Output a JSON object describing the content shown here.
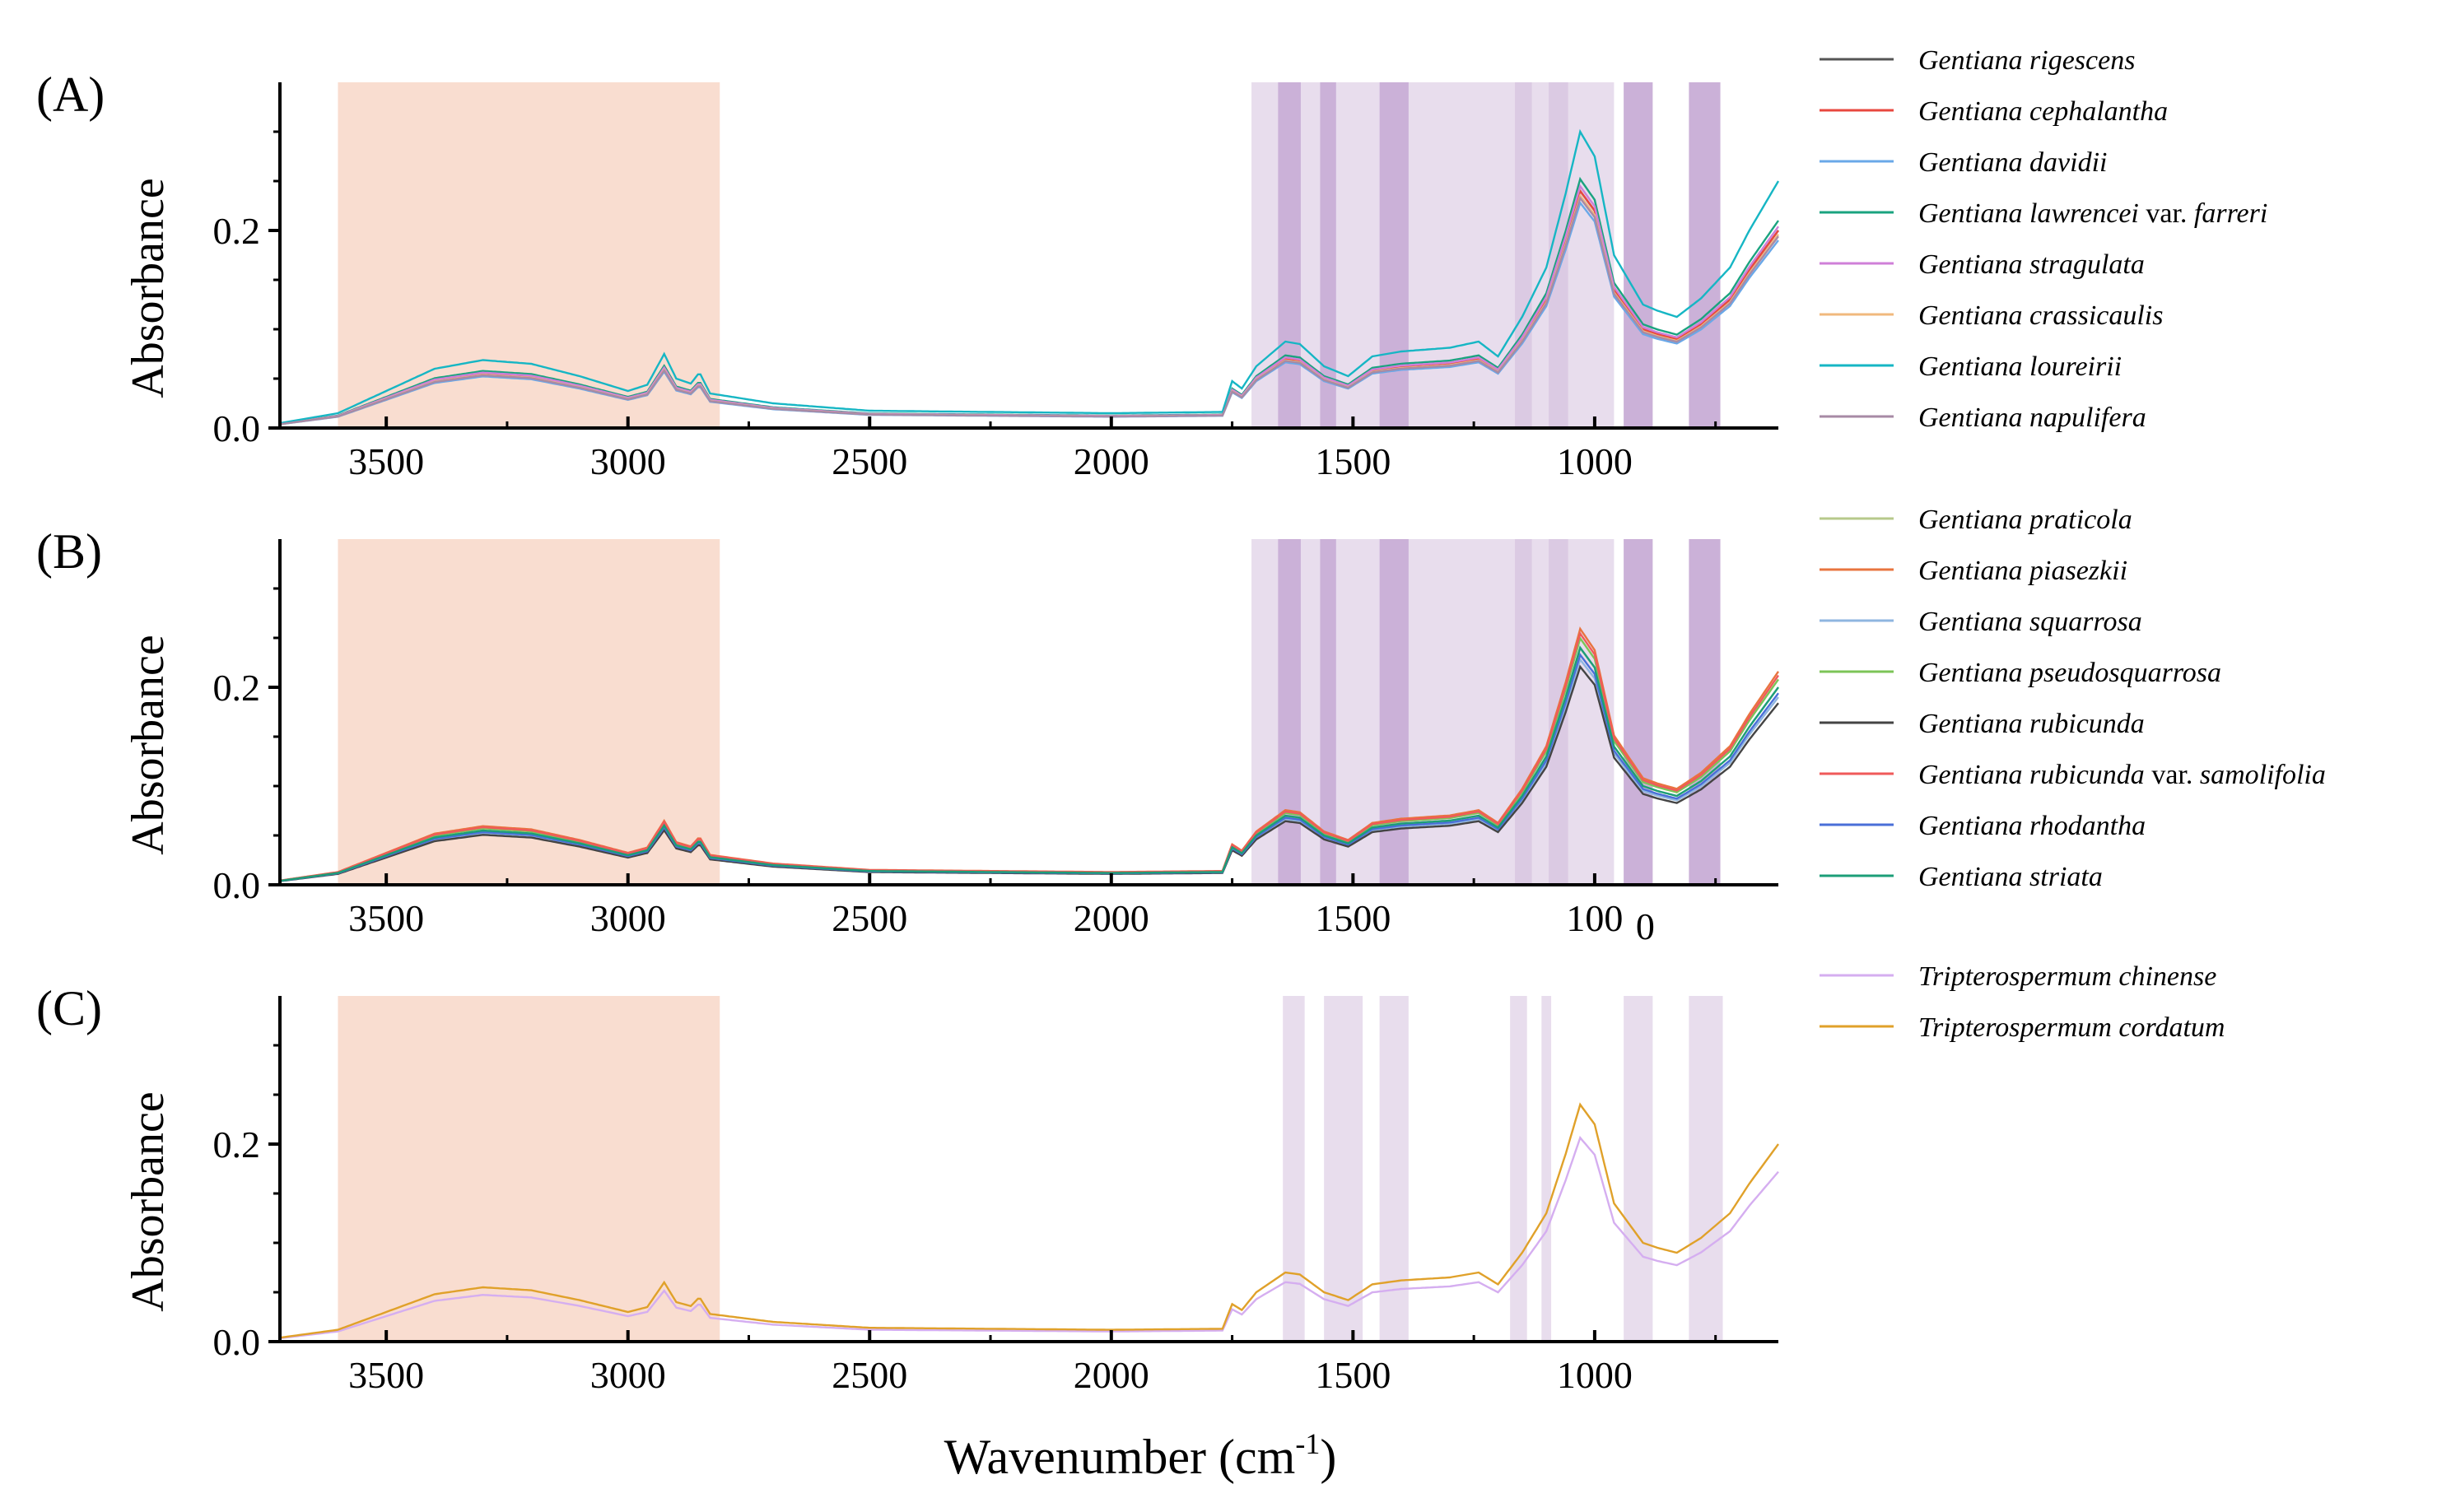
{
  "chart_data": {
    "type": "line",
    "title": "",
    "xlabel": "Wavenumber (cm",
    "xlabel_sup": "-1",
    "xlabel_close": ")",
    "ylabel": "Absorbance",
    "xlim": [
      3720,
      620
    ],
    "ylim": [
      0,
      0.35
    ],
    "x_ticks": [
      3500,
      3000,
      2500,
      2000,
      1500,
      1000
    ],
    "y_ticks": [
      0.0,
      0.2
    ],
    "y_tick_labels": [
      "0.0",
      "0.2"
    ],
    "x_tick_labels": [
      "3500",
      "3000",
      "2500",
      "2000",
      "1500",
      "1000"
    ],
    "x_tick_labels_panel_b": [
      "3500",
      "3000",
      "2500",
      "2000",
      "1500",
      "100",
      "0"
    ],
    "highlight_band_color": "#f5c6b1",
    "highlight_bands": [
      [
        3600,
        2810
      ]
    ],
    "region_color": "#cdb3d8",
    "region_color_dark": "#a97cbf",
    "panels": [
      {
        "letter": "(A)",
        "light_regions": [
          [
            1710,
            960
          ],
          [
            1165,
            1130
          ],
          [
            1095,
            1055
          ],
          [
            940,
            880
          ],
          [
            805,
            740
          ]
        ],
        "dark_regions": [
          [
            1655,
            1608
          ],
          [
            1568,
            1535
          ],
          [
            1445,
            1385
          ],
          [
            940,
            880
          ],
          [
            805,
            740
          ]
        ],
        "series": [
          {
            "name": "Gentiana rigescens",
            "color": "#555555",
            "scale": 1.0
          },
          {
            "name": "Gentiana cephalantha",
            "color": "#e8483f",
            "scale": 1.0
          },
          {
            "name": "Gentiana davidii",
            "color": "#6aa8e8",
            "scale": 0.95
          },
          {
            "name": "Gentiana lawrencei var. farreri",
            "color": "#1aa37f",
            "scale": 1.05
          },
          {
            "name": "Gentiana stragulata",
            "color": "#cf7fd8",
            "scale": 1.02
          },
          {
            "name": "Gentiana crassicaulis",
            "color": "#f1b97d",
            "scale": 0.98
          },
          {
            "name": "Gentiana loureirii",
            "color": "#16b6c4",
            "scale": 1.25
          },
          {
            "name": "Gentiana napulifera",
            "color": "#a78aa5",
            "scale": 0.97
          }
        ]
      },
      {
        "letter": "(B)",
        "light_regions": [
          [
            1710,
            960
          ],
          [
            1165,
            1130
          ],
          [
            1095,
            1055
          ],
          [
            940,
            880
          ],
          [
            805,
            740
          ]
        ],
        "dark_regions": [
          [
            1655,
            1608
          ],
          [
            1568,
            1535
          ],
          [
            1445,
            1385
          ],
          [
            940,
            880
          ],
          [
            805,
            740
          ]
        ],
        "series": [
          {
            "name": "Gentiana praticola",
            "color": "#b7c98b",
            "scale": 1.0
          },
          {
            "name": "Gentiana piasezkii",
            "color": "#e8743f",
            "scale": 1.08
          },
          {
            "name": "Gentiana squarrosa",
            "color": "#8fb6e0",
            "scale": 0.95
          },
          {
            "name": "Gentiana pseudosquarrosa",
            "color": "#7cc457",
            "scale": 1.04
          },
          {
            "name": "Gentiana rubicunda",
            "color": "#444444",
            "scale": 0.92
          },
          {
            "name": "Gentiana rubicunda var. samolifolia",
            "color": "#f05a5a",
            "scale": 1.06
          },
          {
            "name": "Gentiana rhodantha",
            "color": "#4a6fd8",
            "scale": 0.97
          },
          {
            "name": "Gentiana striata",
            "color": "#1c9e78",
            "scale": 1.0
          }
        ]
      },
      {
        "letter": "(C)",
        "light_regions": [
          [
            1645,
            1600
          ],
          [
            1560,
            1480
          ],
          [
            1445,
            1385
          ],
          [
            1175,
            1140
          ],
          [
            1110,
            1090
          ],
          [
            940,
            880
          ],
          [
            805,
            735
          ]
        ],
        "dark_regions": [],
        "series": [
          {
            "name": "Tripterospermum chinense",
            "color": "#d5aef0",
            "scale": 0.86
          },
          {
            "name": "Tripterospermum cordatum",
            "color": "#e0a12a",
            "scale": 1.0
          }
        ]
      }
    ],
    "legend_groups": [
      [
        {
          "name": "Gentiana rigescens"
        },
        {
          "name": "Gentiana cephalantha"
        },
        {
          "name": "Gentiana davidii"
        },
        {
          "name": "Gentiana lawrencei",
          "var": "var.",
          "rest": "farreri"
        },
        {
          "name": "Gentiana stragulata"
        },
        {
          "name": "Gentiana crassicaulis"
        },
        {
          "name": "Gentiana loureirii"
        },
        {
          "name": "Gentiana napulifera"
        }
      ],
      [
        {
          "name": "Gentiana praticola"
        },
        {
          "name": "Gentiana piasezkii"
        },
        {
          "name": "Gentiana squarrosa"
        },
        {
          "name": "Gentiana pseudosquarrosa"
        },
        {
          "name": "Gentiana rubicunda"
        },
        {
          "name": "Gentiana rubicunda",
          "var": "var.",
          "rest": "samolifolia"
        },
        {
          "name": "Gentiana rhodantha"
        },
        {
          "name": "Gentiana striata"
        }
      ],
      [
        {
          "name": "Tripterospermum chinense"
        },
        {
          "name": "Tripterospermum cordatum"
        }
      ]
    ],
    "base_spectrum": [
      [
        3720,
        0.004
      ],
      [
        3600,
        0.012
      ],
      [
        3500,
        0.03
      ],
      [
        3400,
        0.048
      ],
      [
        3300,
        0.055
      ],
      [
        3200,
        0.052
      ],
      [
        3100,
        0.042
      ],
      [
        3000,
        0.03
      ],
      [
        2960,
        0.035
      ],
      [
        2925,
        0.06
      ],
      [
        2900,
        0.04
      ],
      [
        2870,
        0.036
      ],
      [
        2852,
        0.045
      ],
      [
        2830,
        0.028
      ],
      [
        2700,
        0.02
      ],
      [
        2500,
        0.014
      ],
      [
        2000,
        0.012
      ],
      [
        1770,
        0.013
      ],
      [
        1750,
        0.038
      ],
      [
        1730,
        0.032
      ],
      [
        1700,
        0.05
      ],
      [
        1640,
        0.07
      ],
      [
        1610,
        0.068
      ],
      [
        1560,
        0.05
      ],
      [
        1510,
        0.042
      ],
      [
        1460,
        0.058
      ],
      [
        1400,
        0.062
      ],
      [
        1300,
        0.065
      ],
      [
        1240,
        0.07
      ],
      [
        1200,
        0.058
      ],
      [
        1150,
        0.09
      ],
      [
        1100,
        0.13
      ],
      [
        1060,
        0.19
      ],
      [
        1030,
        0.24
      ],
      [
        1000,
        0.22
      ],
      [
        960,
        0.14
      ],
      [
        900,
        0.1
      ],
      [
        870,
        0.095
      ],
      [
        830,
        0.09
      ],
      [
        780,
        0.105
      ],
      [
        720,
        0.13
      ],
      [
        680,
        0.16
      ],
      [
        620,
        0.2
      ]
    ]
  }
}
